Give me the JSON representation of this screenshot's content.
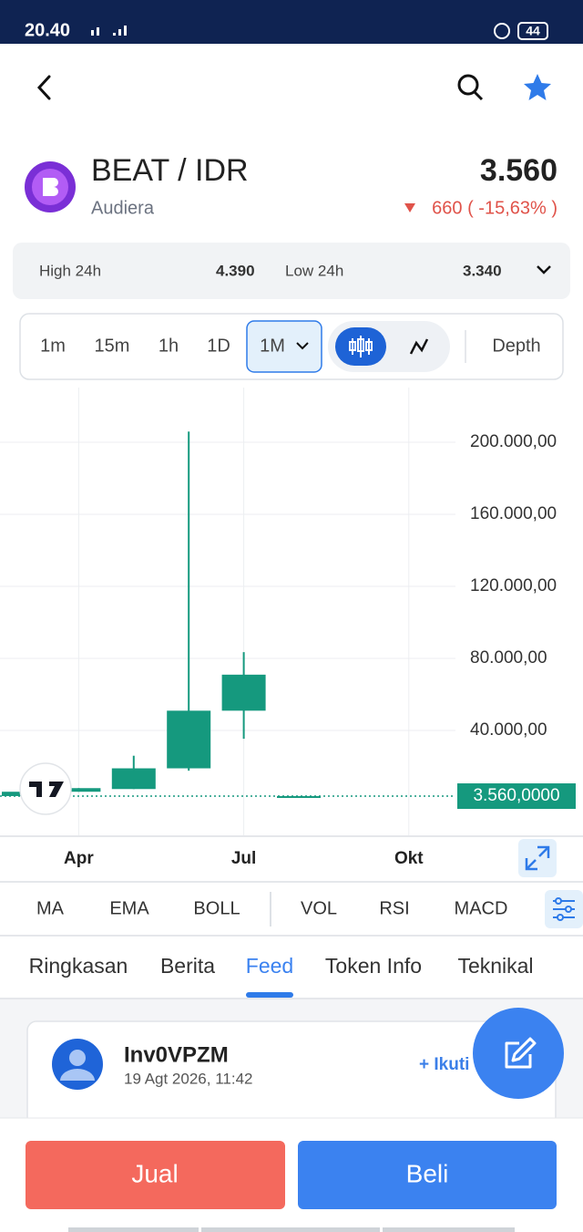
{
  "status_bar": {
    "time": "20.40",
    "battery": "44"
  },
  "asset": {
    "pair": "BEAT / IDR",
    "name": "Audiera",
    "price": "3.560",
    "change": "660 ( -15,63% )"
  },
  "stats": {
    "high_label": "High 24h",
    "high": "4.390",
    "low_label": "Low 24h",
    "low": "3.340"
  },
  "intervals": [
    "1m",
    "15m",
    "1h",
    "1D",
    "1M"
  ],
  "depth": "Depth",
  "chart_data": {
    "type": "candlestick",
    "categories": [
      null,
      "Apr",
      null,
      null,
      "Jul",
      null,
      null,
      "Okt"
    ],
    "open": [
      3600,
      6000,
      7500,
      19000,
      51000,
      3560,
      null,
      null
    ],
    "high": [
      6000,
      8000,
      26000,
      206000,
      83500,
      3560,
      null,
      null
    ],
    "low": [
      3600,
      6000,
      7500,
      17700,
      35400,
      3560,
      null,
      null
    ],
    "close": [
      6000,
      8000,
      19000,
      51000,
      71000,
      3560,
      null,
      null
    ],
    "ylim": [
      -18700,
      230400
    ],
    "yticks": [
      {
        "value": 40000,
        "label": "40.000,00"
      },
      {
        "value": 80000,
        "label": "80.000,00"
      },
      {
        "value": 120000,
        "label": "120.000,00"
      },
      {
        "value": 160000,
        "label": "160.000,00"
      },
      {
        "value": 200000,
        "label": "200.000,00"
      }
    ],
    "last_price": {
      "value": 3560,
      "label": "3.560,0000"
    },
    "color": "#15997e",
    "grid": true
  },
  "indicators": [
    "MA",
    "EMA",
    "BOLL",
    "VOL",
    "RSI",
    "MACD"
  ],
  "tabs": [
    "Ringkasan",
    "Berita",
    "Feed",
    "Token Info",
    "Teknikal"
  ],
  "post": {
    "user": "Inv0VPZM",
    "time": "19 Agt 2026, 11:42",
    "follow": "+ Ikuti"
  },
  "actions": {
    "sell": "Jual",
    "buy": "Beli"
  }
}
